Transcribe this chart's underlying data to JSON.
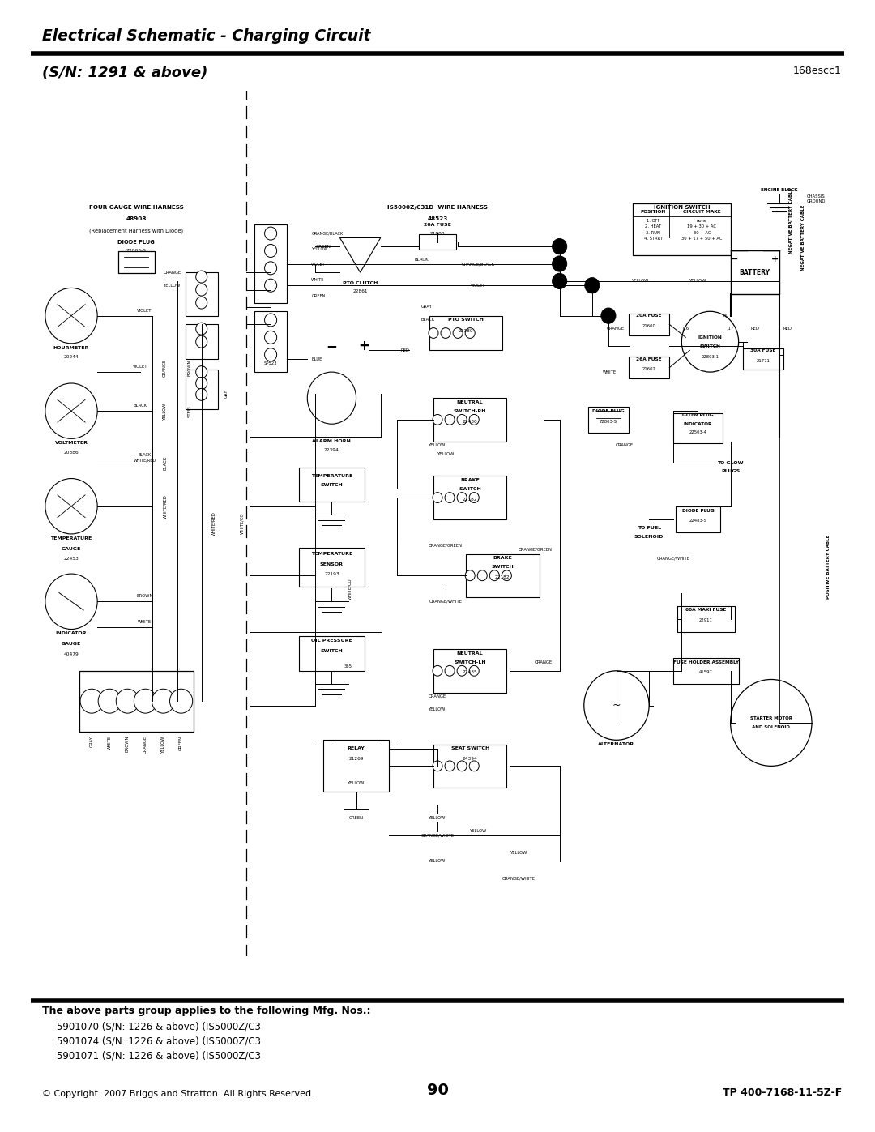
{
  "page_width": 10.8,
  "page_height": 13.97,
  "dpi": 100,
  "background_color": "#ffffff",
  "title_line1": "Electrical Schematic - Charging Circuit",
  "title_line2": "(S/N: 1291 & above)",
  "title_right": "168escc1",
  "footer_copyright": "© Copyright  2007 Briggs and Stratton. All Rights Reserved.",
  "footer_page": "90",
  "footer_right": "TP 400-7168-11-5Z-F",
  "parts_header": "The above parts group applies to the following Mfg. Nos.:",
  "parts_lines": [
    "5901070 (S/N: 1226 & above) (IS5000Z/C3",
    "5901074 (S/N: 1226 & above) (IS5000Z/C3",
    "5901071 (S/N: 1226 & above) (IS5000Z/C3"
  ],
  "ignition_rows": [
    [
      "1. OFF",
      "none"
    ],
    [
      "2. HEAT",
      "19 + 30 + AC"
    ],
    [
      "3. RUN",
      "30 + AC"
    ],
    [
      "4. START",
      "30 + 17 + 50 + AC"
    ]
  ]
}
